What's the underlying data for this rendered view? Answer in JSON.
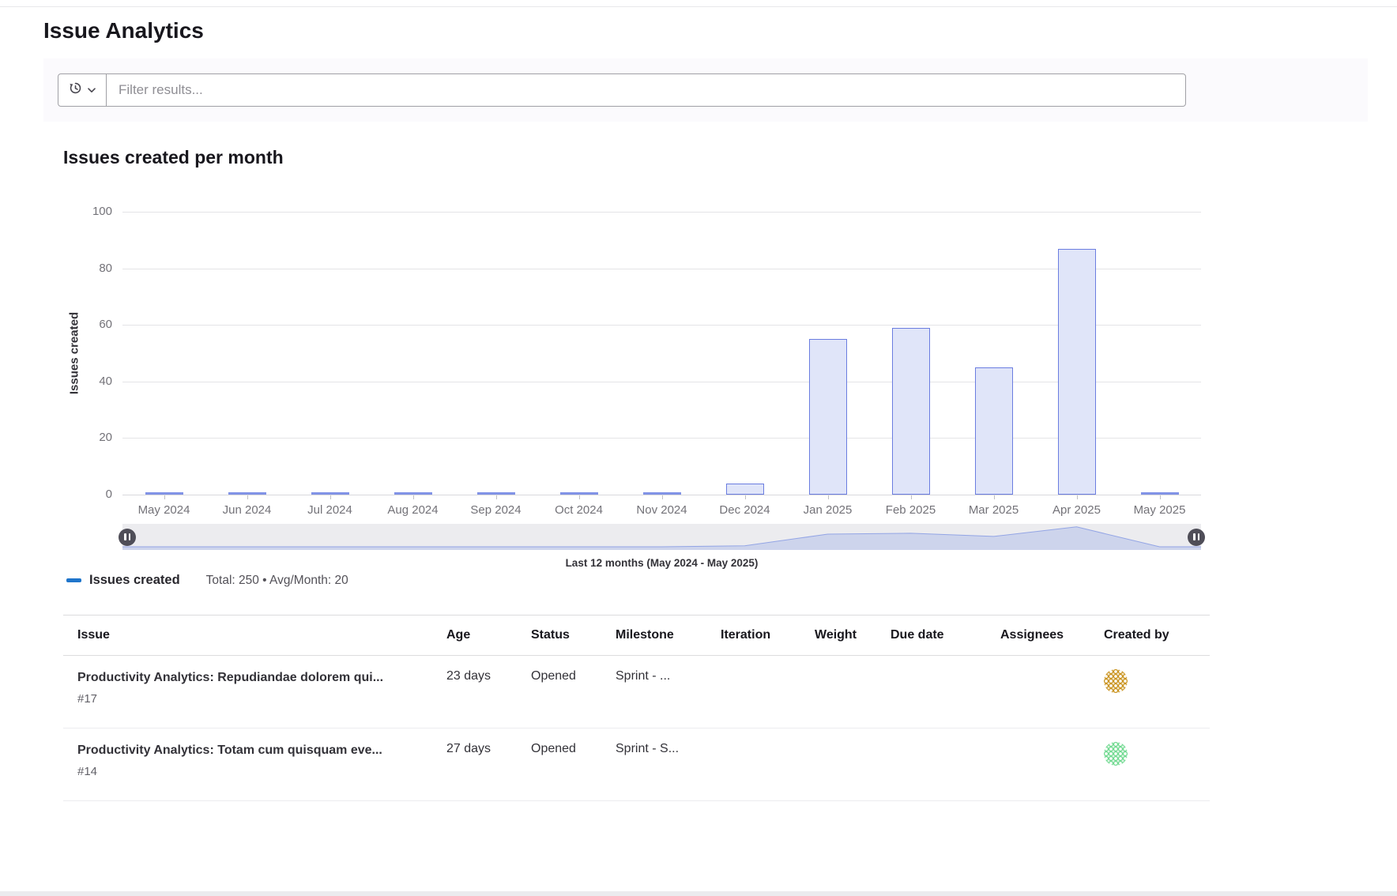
{
  "page": {
    "title": "Issue Analytics"
  },
  "filter": {
    "placeholder": "Filter results..."
  },
  "chart_section": {
    "heading": "Issues created per month"
  },
  "chart_data": {
    "type": "bar",
    "title": "Issues created per month",
    "categories": [
      "May 2024",
      "Jun 2024",
      "Jul 2024",
      "Aug 2024",
      "Sep 2024",
      "Oct 2024",
      "Nov 2024",
      "Dec 2024",
      "Jan 2025",
      "Feb 2025",
      "Mar 2025",
      "Apr 2025",
      "May 2025"
    ],
    "series": [
      {
        "name": "Issues created",
        "values": [
          0,
          0,
          0,
          0,
          0,
          0,
          0,
          4,
          55,
          59,
          45,
          87,
          0
        ]
      }
    ],
    "xlabel": "",
    "ylabel": "Issues created",
    "ylim": [
      0,
      100
    ],
    "yticks": [
      0,
      20,
      40,
      60,
      80,
      100
    ],
    "grid": true,
    "legend_position": "bottom-left",
    "bar_fill": "#e0e5f9",
    "bar_border": "#6b7de0",
    "brush_caption": "Last 12 months (May 2024 - May 2025)"
  },
  "legend": {
    "label": "Issues created",
    "summary": "Total: 250 • Avg/Month: 20",
    "swatch_color": "#1f75cb"
  },
  "table": {
    "columns": [
      "Issue",
      "Age",
      "Status",
      "Milestone",
      "Iteration",
      "Weight",
      "Due date",
      "Assignees",
      "Created by"
    ],
    "rows": [
      {
        "title": "Productivity Analytics: Repudiandae dolorem qui...",
        "id": "#17",
        "age": "23 days",
        "status": "Opened",
        "milestone": "Sprint - ...",
        "iteration": "",
        "weight": "",
        "due_date": "",
        "assignees": "",
        "created_by_avatar": "avatar-identicon-gold",
        "created_by_avatar_color": "#c9921c"
      },
      {
        "title": "Productivity Analytics: Totam cum quisquam eve...",
        "id": "#14",
        "age": "27 days",
        "status": "Opened",
        "milestone": "Sprint - S...",
        "iteration": "",
        "weight": "",
        "due_date": "",
        "assignees": "",
        "created_by_avatar": "avatar-identicon-green",
        "created_by_avatar_color": "#6fd98f"
      }
    ]
  }
}
